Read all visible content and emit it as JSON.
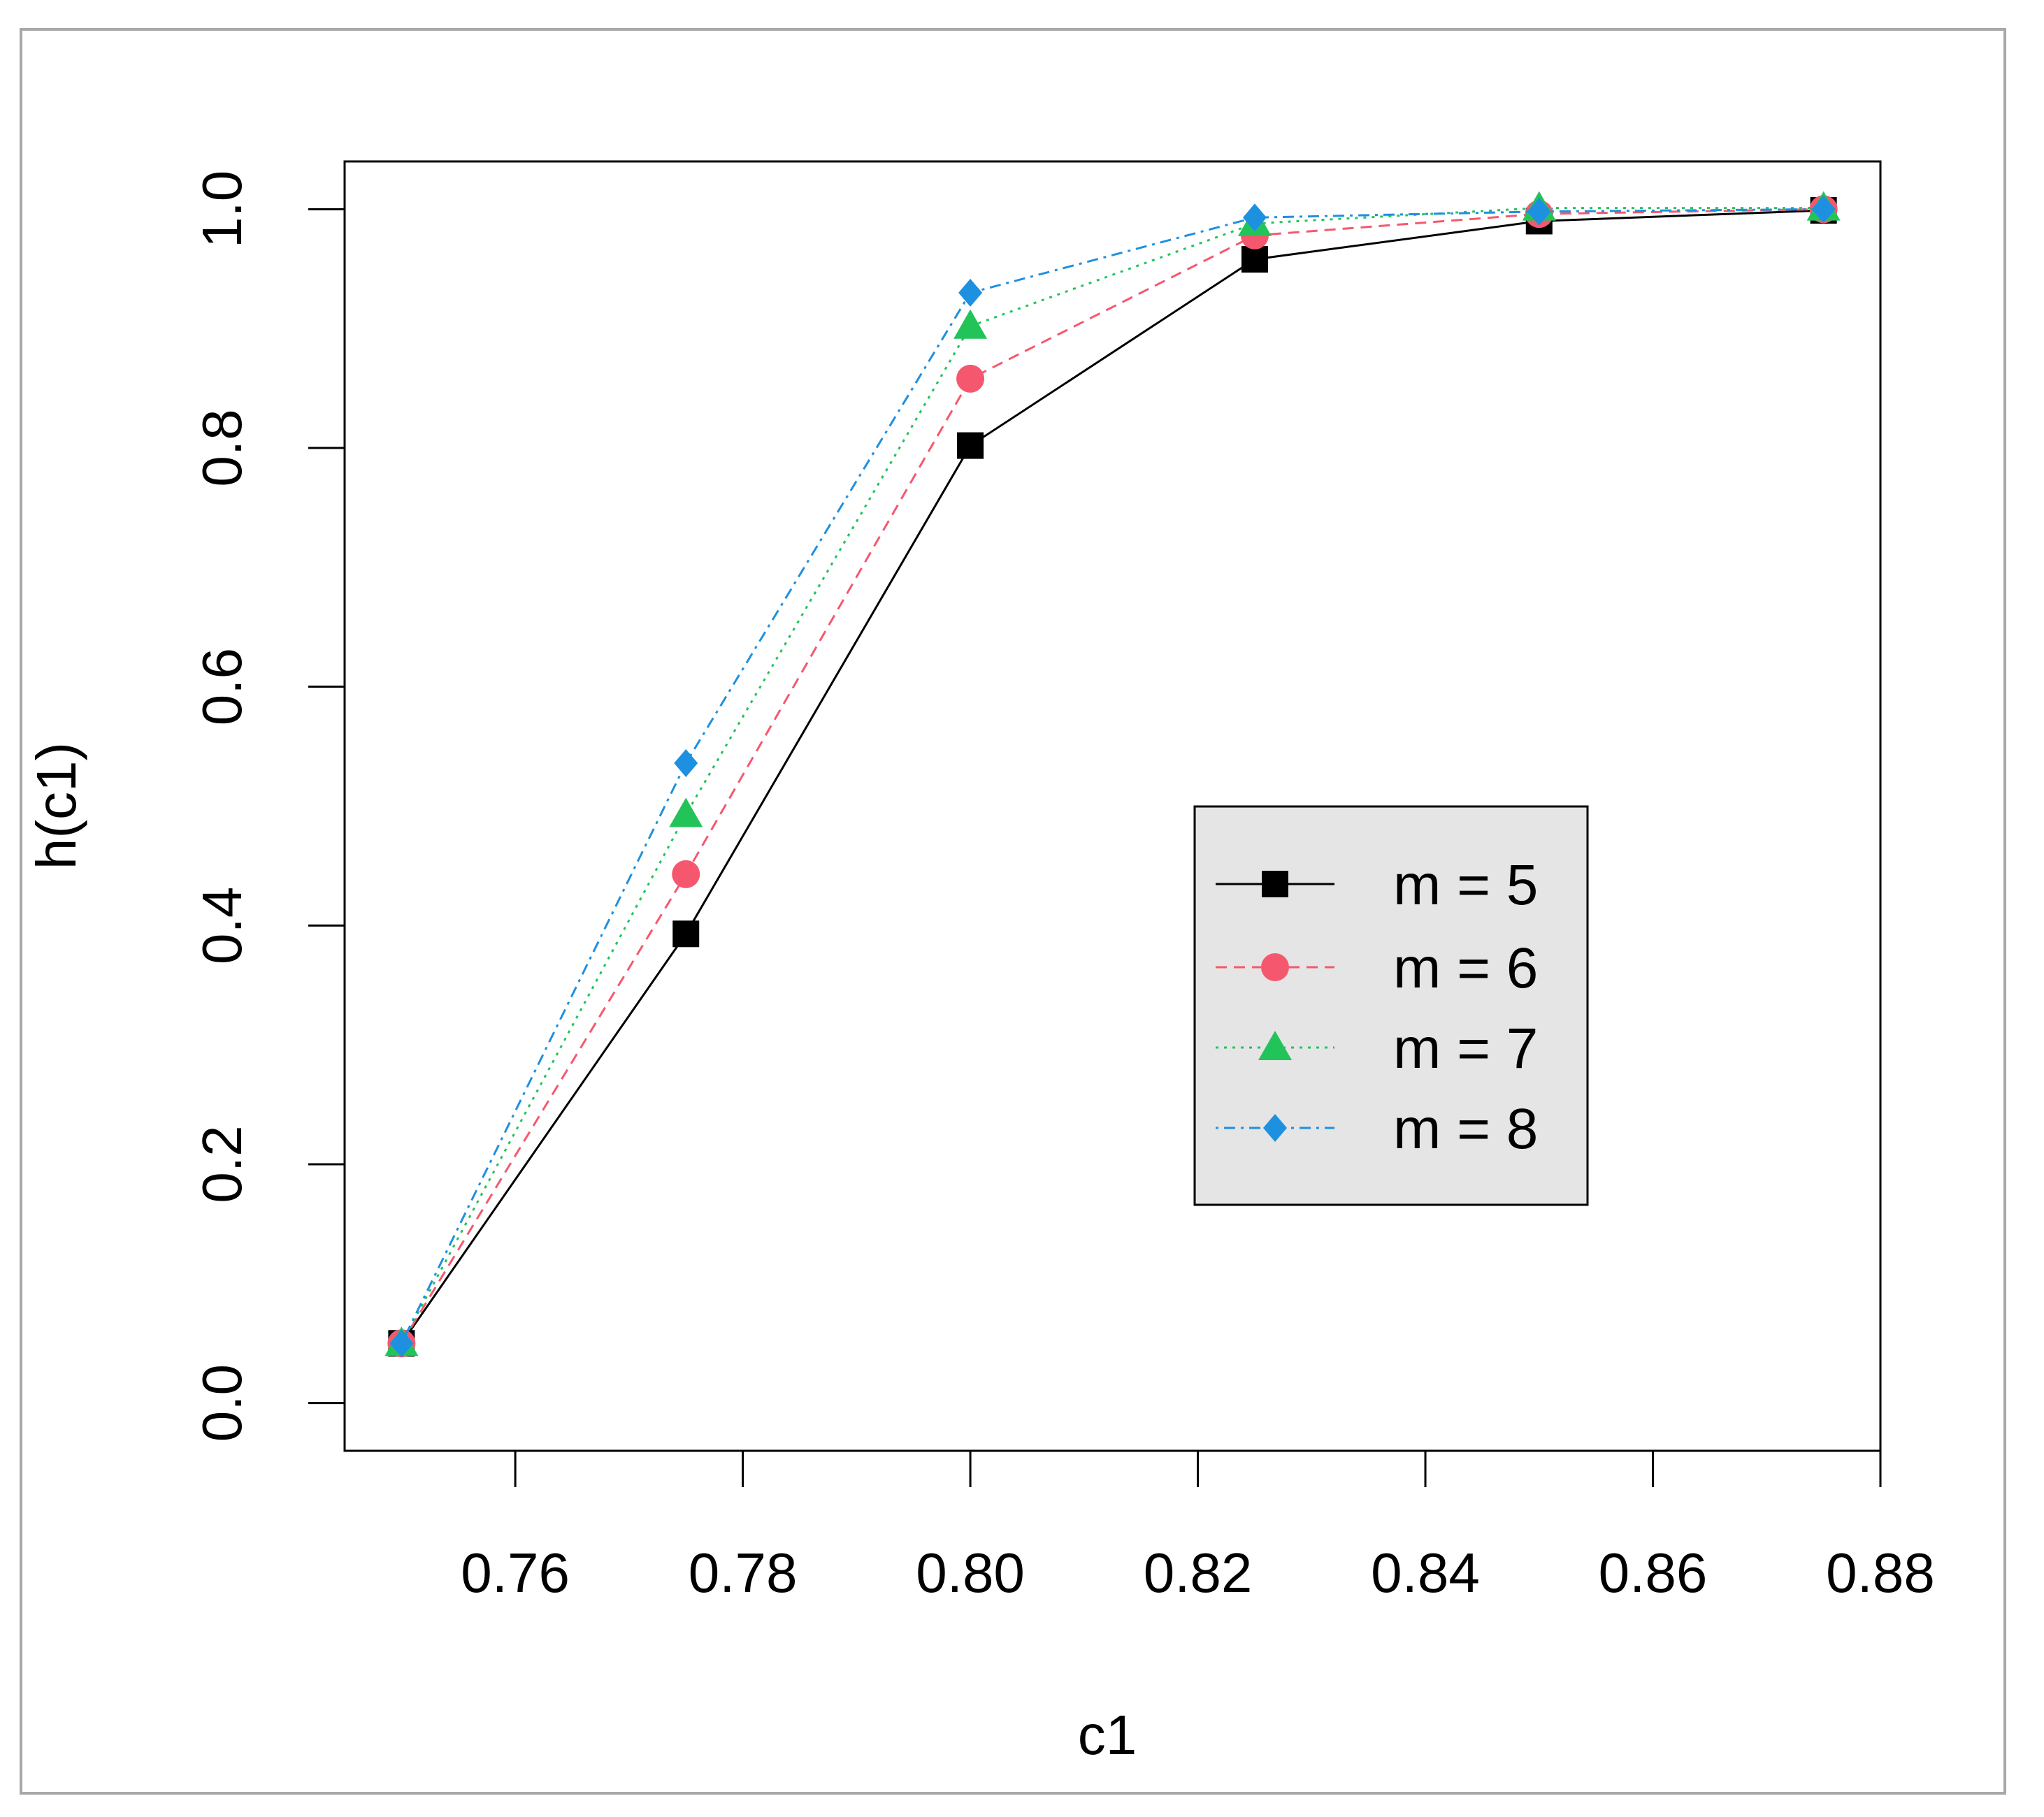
{
  "chart_data": {
    "type": "line",
    "title": "",
    "xlabel": "c1",
    "ylabel": "h(c1)",
    "xlim": [
      0.745,
      0.88
    ],
    "ylim": [
      -0.04,
      1.04
    ],
    "x": [
      0.75,
      0.775,
      0.8,
      0.825,
      0.85,
      0.875
    ],
    "x_ticks": [
      0.76,
      0.78,
      0.8,
      0.82,
      0.84,
      0.86,
      0.88
    ],
    "x_tick_labels": [
      "0.76",
      "0.78",
      "0.80",
      "0.82",
      "0.84",
      "0.86",
      "0.88"
    ],
    "y_ticks": [
      0.0,
      0.2,
      0.4,
      0.6,
      0.8,
      1.0
    ],
    "y_tick_labels": [
      "0.0",
      "0.2",
      "0.4",
      "0.6",
      "0.8",
      "1.0"
    ],
    "grid": false,
    "legend_position": "center-right",
    "legend_background": "#e5e5e5",
    "series": [
      {
        "name": "m = 5",
        "color": "#000000",
        "dash": "solid",
        "marker": "square",
        "values": [
          0.05,
          0.393,
          0.802,
          0.958,
          0.99,
          0.999
        ]
      },
      {
        "name": "m = 6",
        "color": "#f5586e",
        "dash": "dashed",
        "marker": "circle",
        "values": [
          0.05,
          0.443,
          0.858,
          0.978,
          0.996,
          1.0
        ]
      },
      {
        "name": "m = 7",
        "color": "#22c45a",
        "dash": "dotted",
        "marker": "triangle",
        "values": [
          0.05,
          0.493,
          0.902,
          0.988,
          1.001,
          1.001
        ]
      },
      {
        "name": "m = 8",
        "color": "#1e90e0",
        "dash": "dotdash",
        "marker": "diamond",
        "values": [
          0.05,
          0.536,
          0.93,
          0.993,
          0.998,
          1.0
        ]
      }
    ]
  }
}
